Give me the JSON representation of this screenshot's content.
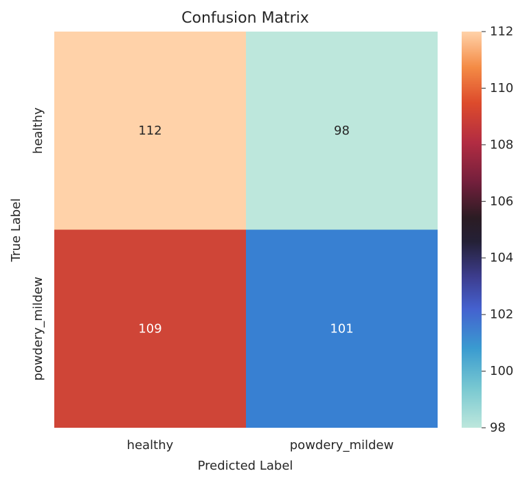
{
  "chart_data": {
    "type": "heatmap",
    "title": "Confusion Matrix",
    "xlabel": "Predicted Label",
    "ylabel": "True Label",
    "x_categories": [
      "healthy",
      "powdery_mildew"
    ],
    "y_categories": [
      "healthy",
      "powdery_mildew"
    ],
    "values": [
      [
        112,
        98
      ],
      [
        109,
        101
      ]
    ],
    "colorbar": {
      "min": 98,
      "max": 112,
      "ticks": [
        98,
        100,
        102,
        104,
        106,
        108,
        110,
        112
      ],
      "colormap": "icefire"
    },
    "cell_colors": [
      [
        "#ffd2a9",
        "#bde7dc"
      ],
      [
        "#cf4537",
        "#3880d2"
      ]
    ],
    "annotation_colors": [
      [
        "#262626",
        "#262626"
      ],
      [
        "#ffffff",
        "#ffffff"
      ]
    ]
  }
}
